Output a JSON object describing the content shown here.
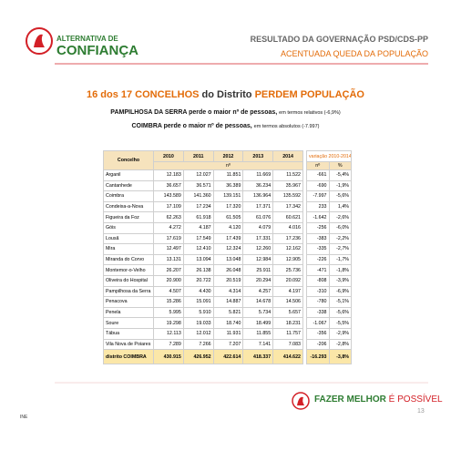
{
  "header": {
    "logo_line1": "ALTERNATIVA DE",
    "logo_line2": "CONFIANÇA",
    "right_line1": "RESULTADO DA GOVERNAÇÃO PSD/CDS-PP",
    "right_line2": "ACENTUADA QUEDA DA POPULAÇÃO"
  },
  "title": {
    "part1": "16 dos 17 CONCELHOS",
    "part2": "do Distrito",
    "part3": "PERDEM POPULAÇÃO"
  },
  "subtitles": [
    {
      "bold": "PAMPILHOSA DA SERRA perde o maior nº de pessoas,",
      "normal": "em termos relativos (-6,9%)"
    },
    {
      "bold": "COIMBRA perde o maior nº de pessoas,",
      "normal": "em termos absolutos (-7.997)"
    }
  ],
  "table": {
    "columns": [
      "Concelho",
      "2010",
      "2011",
      "2012",
      "2013",
      "2014"
    ],
    "unit": "nº",
    "variation_header": "variação 2010-2014",
    "variation_columns": [
      "nº",
      "%"
    ],
    "rows": [
      [
        "Arganil",
        "12.183",
        "12.027",
        "11.851",
        "11.669",
        "11.522",
        "-661",
        "-5,4%"
      ],
      [
        "Cantanhede",
        "36.657",
        "36.571",
        "36.389",
        "36.234",
        "35.967",
        "-690",
        "-1,9%"
      ],
      [
        "Coimbra",
        "143.589",
        "141.360",
        "139.151",
        "136.964",
        "135.592",
        "-7.997",
        "-5,6%"
      ],
      [
        "Condeixa-a-Nova",
        "17.109",
        "17.234",
        "17.320",
        "17.371",
        "17.342",
        "233",
        "1,4%"
      ],
      [
        "Figueira da Foz",
        "62.263",
        "61.918",
        "61.505",
        "61.076",
        "60.621",
        "-1.642",
        "-2,6%"
      ],
      [
        "Góis",
        "4.272",
        "4.187",
        "4.120",
        "4.079",
        "4.016",
        "-256",
        "-6,0%"
      ],
      [
        "Lousã",
        "17.619",
        "17.549",
        "17.439",
        "17.331",
        "17.236",
        "-383",
        "-2,2%"
      ],
      [
        "Mira",
        "12.497",
        "12.410",
        "12.324",
        "12.260",
        "12.162",
        "-335",
        "-2,7%"
      ],
      [
        "Miranda do Corvo",
        "13.131",
        "13.094",
        "13.048",
        "12.984",
        "12.905",
        "-226",
        "-1,7%"
      ],
      [
        "Montemor-o-Velho",
        "26.207",
        "26.138",
        "26.048",
        "25.911",
        "25.736",
        "-471",
        "-1,8%"
      ],
      [
        "Oliveira do Hospital",
        "20.900",
        "20.722",
        "20.519",
        "20.294",
        "20.092",
        "-808",
        "-3,9%"
      ],
      [
        "Pampilhosa da Serra",
        "4.507",
        "4.430",
        "4.314",
        "4.257",
        "4.197",
        "-310",
        "-6,9%"
      ],
      [
        "Penacova",
        "15.286",
        "15.091",
        "14.887",
        "14.678",
        "14.506",
        "-780",
        "-5,1%"
      ],
      [
        "Penela",
        "5.995",
        "5.910",
        "5.821",
        "5.734",
        "5.657",
        "-338",
        "-5,6%"
      ],
      [
        "Soure",
        "19.298",
        "19.033",
        "18.740",
        "18.499",
        "18.231",
        "-1.067",
        "-5,5%"
      ],
      [
        "Tábua",
        "12.113",
        "12.012",
        "11.931",
        "11.855",
        "11.757",
        "-356",
        "-2,9%"
      ],
      [
        "Vila Nova de Poiares",
        "7.289",
        "7.266",
        "7.207",
        "7.141",
        "7.083",
        "-206",
        "-2,8%"
      ]
    ],
    "total": [
      "distrito COIMBRA",
      "430.915",
      "426.952",
      "422.614",
      "418.337",
      "414.622",
      "-16.293",
      "-3,8%"
    ]
  },
  "footer": {
    "slogan_part1": "FAZER MELHOR",
    "slogan_part2": "É POSSÍVEL",
    "source": "INE",
    "page": "13"
  }
}
